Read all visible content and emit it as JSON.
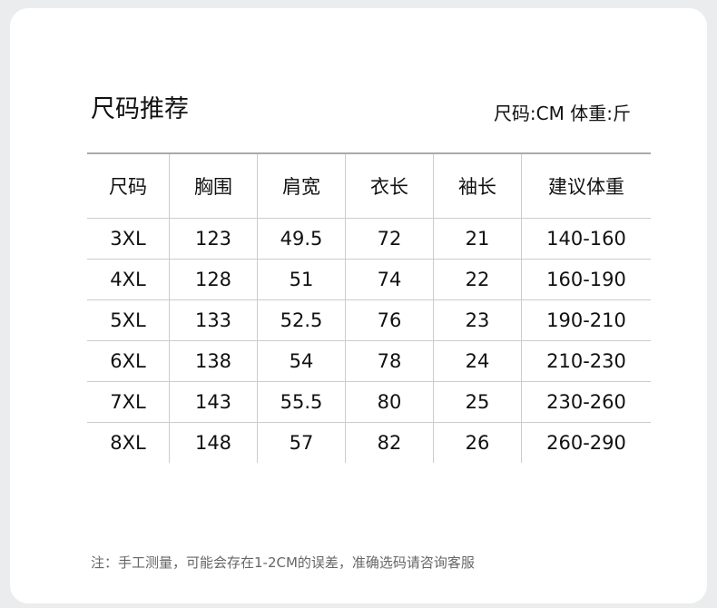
{
  "title": "尺码推荐",
  "units": "尺码:CM 体重:斤",
  "headers": [
    "尺码",
    "胸围",
    "肩宽",
    "衣长",
    "袖长",
    "建议体重"
  ],
  "rows": [
    [
      "3XL",
      "123",
      "49.5",
      "72",
      "21",
      "140-160"
    ],
    [
      "4XL",
      "128",
      "51",
      "74",
      "22",
      "160-190"
    ],
    [
      "5XL",
      "133",
      "52.5",
      "76",
      "23",
      "190-210"
    ],
    [
      "6XL",
      "138",
      "54",
      "78",
      "24",
      "210-230"
    ],
    [
      "7XL",
      "143",
      "55.5",
      "80",
      "25",
      "230-260"
    ],
    [
      "8XL",
      "148",
      "57",
      "82",
      "26",
      "260-290"
    ]
  ],
  "note": "注：手工测量，可能会存在1-2CM的误差，准确选码请咨询客服"
}
